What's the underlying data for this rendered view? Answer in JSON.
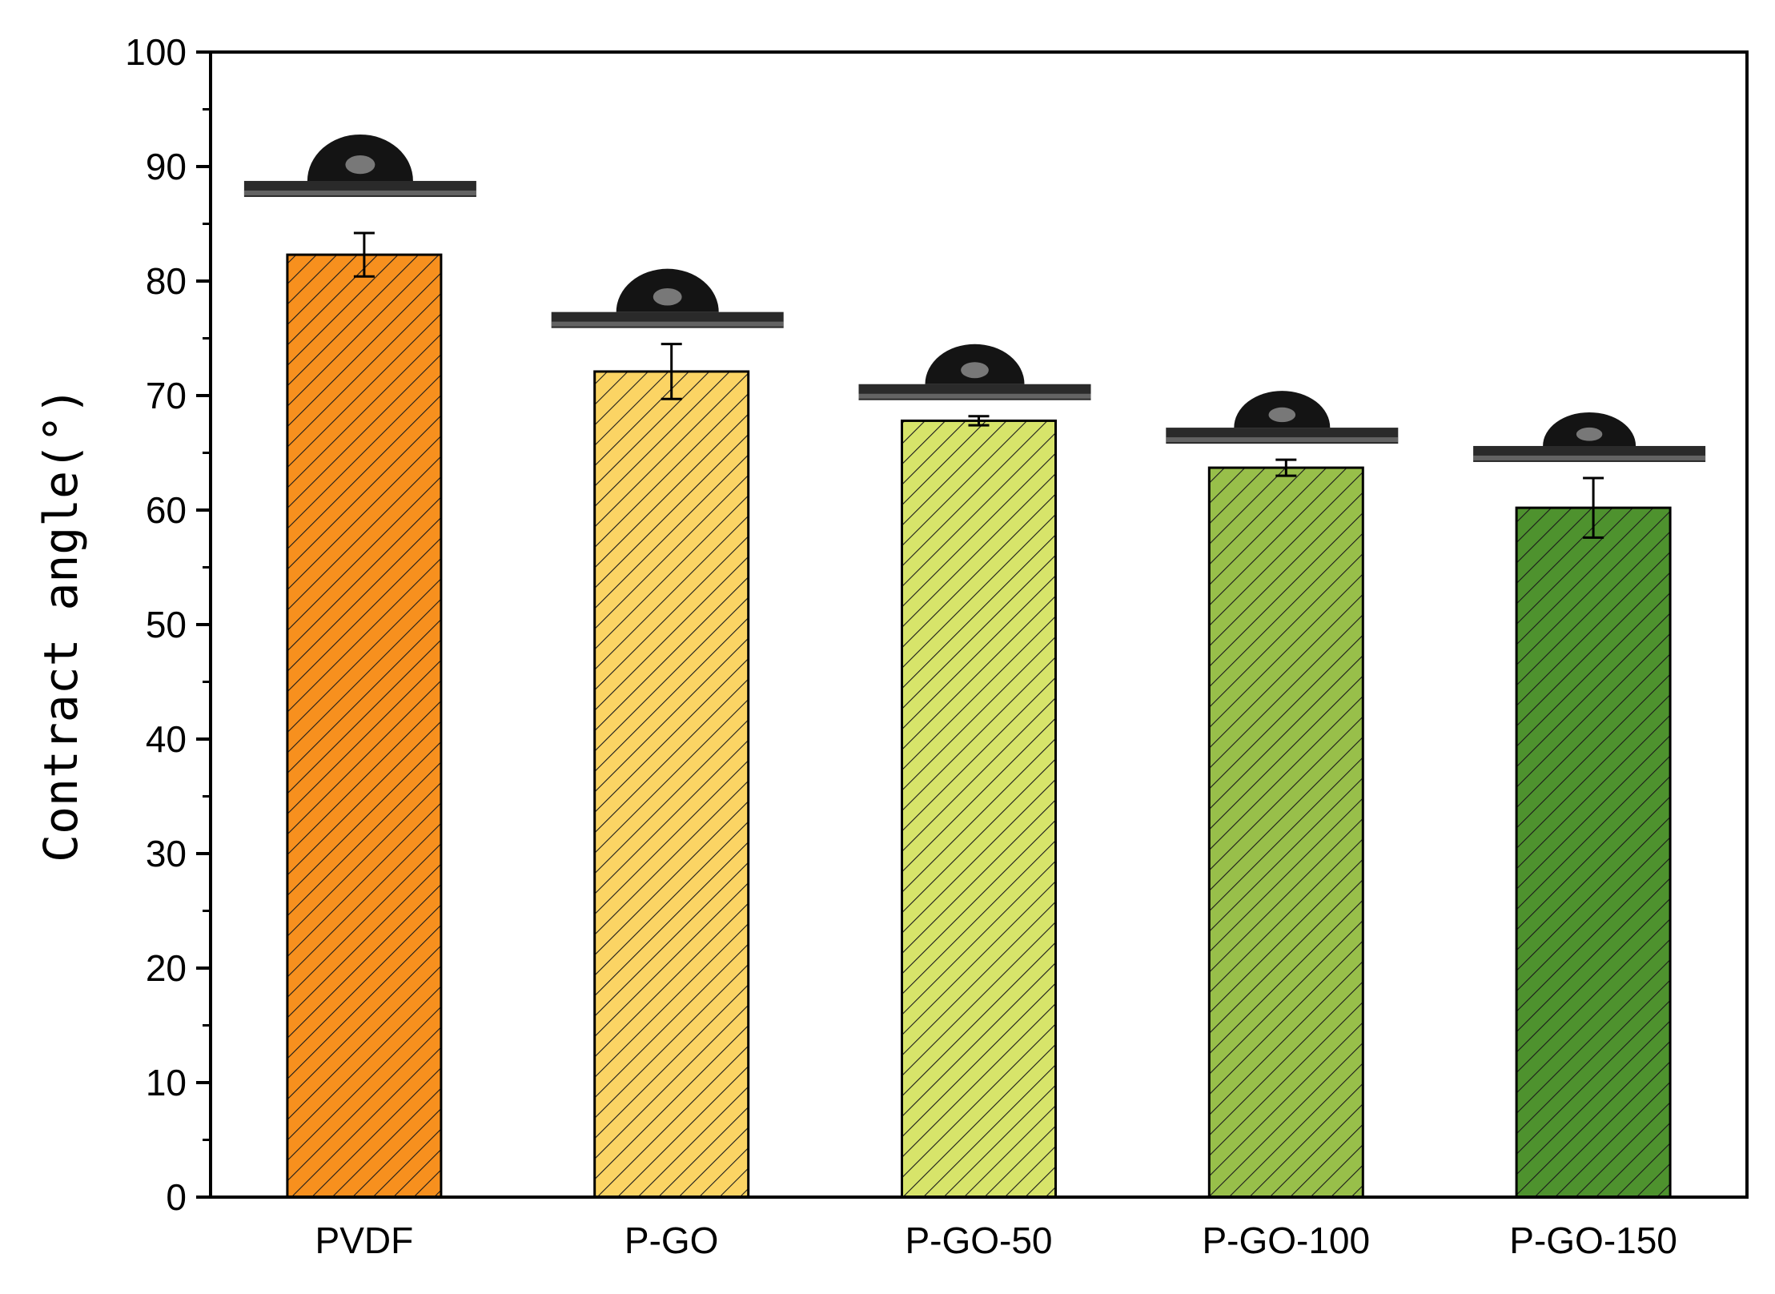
{
  "chart_data": {
    "type": "bar",
    "title": "",
    "xlabel": "",
    "ylabel": "Contract angle(°)",
    "ylim": [
      0,
      100
    ],
    "yticks": [
      0,
      10,
      20,
      30,
      40,
      50,
      60,
      70,
      80,
      90,
      100
    ],
    "grid": false,
    "legend": "none",
    "bar_pattern": "diagonal-hatch",
    "categories": [
      "PVDF",
      "P-GO",
      "P-GO-50",
      "P-GO-100",
      "P-GO-150"
    ],
    "values": [
      82.3,
      72.1,
      67.8,
      63.7,
      60.2
    ],
    "errors": [
      1.9,
      2.4,
      0.4,
      0.7,
      2.6
    ],
    "colors": [
      "#F7901E",
      "#FBD464",
      "#D7E46A",
      "#98BF4A",
      "#4E922E"
    ],
    "droplet_images": [
      "droplet-photo",
      "droplet-photo",
      "droplet-photo",
      "droplet-photo",
      "droplet-photo"
    ]
  }
}
